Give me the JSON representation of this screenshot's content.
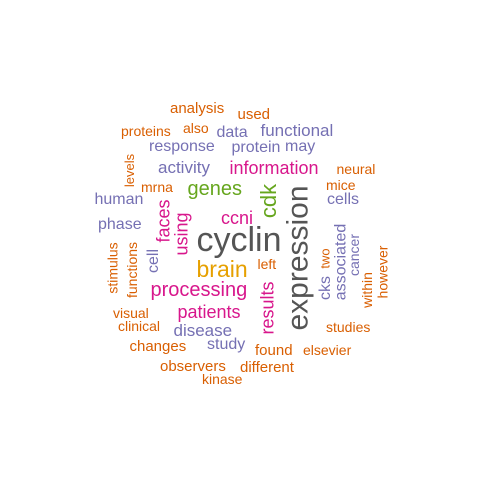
{
  "colors": {
    "gray": "#555555",
    "orange": "#D95F02",
    "purple": "#7570B3",
    "magenta": "#D8178C",
    "green": "#66A61E",
    "gold": "#E6A000"
  },
  "words": [
    {
      "text": "cyclin",
      "color": "gray"
    },
    {
      "text": "expression",
      "color": "gray"
    },
    {
      "text": "brain",
      "color": "gold"
    },
    {
      "text": "processing",
      "color": "magenta"
    },
    {
      "text": "information",
      "color": "magenta"
    },
    {
      "text": "genes",
      "color": "green"
    },
    {
      "text": "cdk",
      "color": "green"
    },
    {
      "text": "ccni",
      "color": "magenta"
    },
    {
      "text": "results",
      "color": "magenta"
    },
    {
      "text": "patients",
      "color": "magenta"
    },
    {
      "text": "faces",
      "color": "magenta"
    },
    {
      "text": "using",
      "color": "magenta"
    },
    {
      "text": "activity",
      "color": "purple"
    },
    {
      "text": "functional",
      "color": "purple"
    },
    {
      "text": "protein",
      "color": "purple"
    },
    {
      "text": "may",
      "color": "purple"
    },
    {
      "text": "data",
      "color": "purple"
    },
    {
      "text": "response",
      "color": "purple"
    },
    {
      "text": "disease",
      "color": "purple"
    },
    {
      "text": "study",
      "color": "purple"
    },
    {
      "text": "associated",
      "color": "purple"
    },
    {
      "text": "cells",
      "color": "purple"
    },
    {
      "text": "human",
      "color": "purple"
    },
    {
      "text": "phase",
      "color": "purple"
    },
    {
      "text": "cell",
      "color": "purple"
    },
    {
      "text": "cks",
      "color": "purple"
    },
    {
      "text": "cancer",
      "color": "purple"
    },
    {
      "text": "analysis",
      "color": "orange"
    },
    {
      "text": "used",
      "color": "orange"
    },
    {
      "text": "proteins",
      "color": "orange"
    },
    {
      "text": "also",
      "color": "orange"
    },
    {
      "text": "neural",
      "color": "orange"
    },
    {
      "text": "mice",
      "color": "orange"
    },
    {
      "text": "mrna",
      "color": "orange"
    },
    {
      "text": "levels",
      "color": "orange"
    },
    {
      "text": "two",
      "color": "orange"
    },
    {
      "text": "within",
      "color": "orange"
    },
    {
      "text": "however",
      "color": "orange"
    },
    {
      "text": "left",
      "color": "orange"
    },
    {
      "text": "stimulus",
      "color": "orange"
    },
    {
      "text": "functions",
      "color": "orange"
    },
    {
      "text": "visual",
      "color": "orange"
    },
    {
      "text": "clinical",
      "color": "orange"
    },
    {
      "text": "studies",
      "color": "orange"
    },
    {
      "text": "changes",
      "color": "orange"
    },
    {
      "text": "found",
      "color": "orange"
    },
    {
      "text": "elsevier",
      "color": "orange"
    },
    {
      "text": "observers",
      "color": "orange"
    },
    {
      "text": "different",
      "color": "orange"
    },
    {
      "text": "kinase",
      "color": "orange"
    }
  ]
}
